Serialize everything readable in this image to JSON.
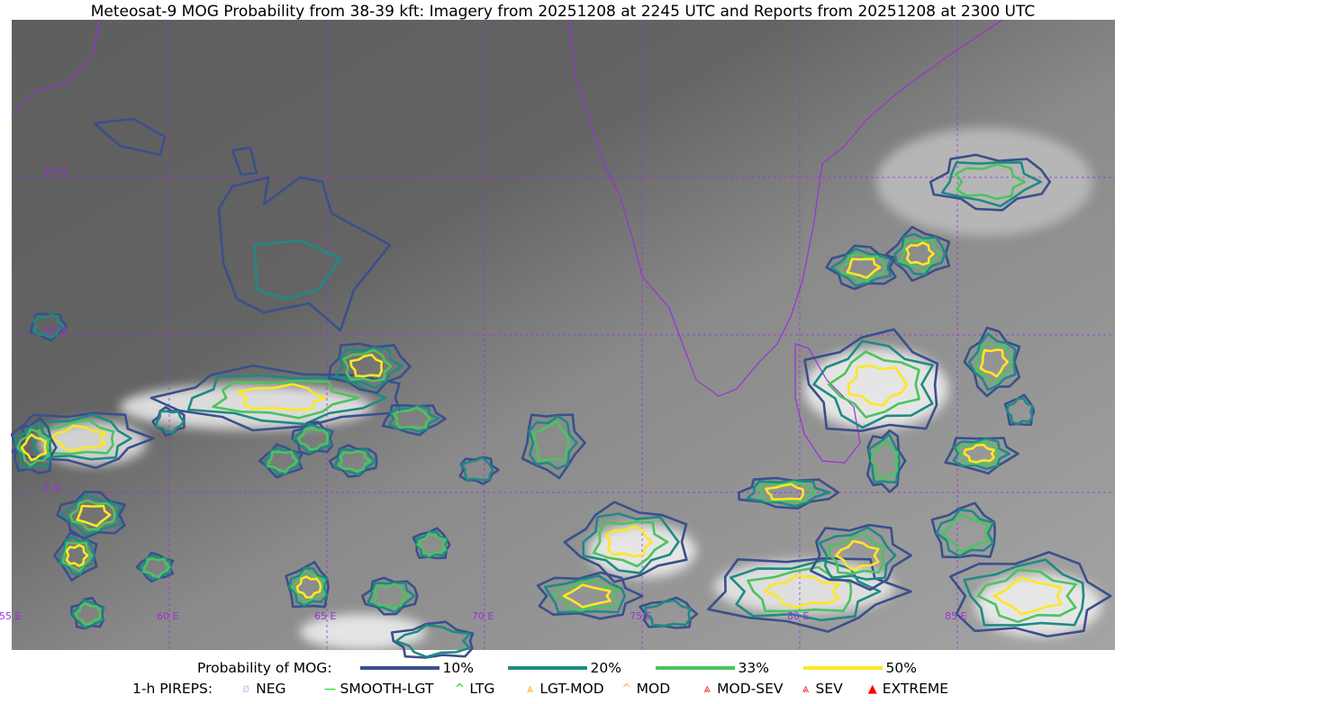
{
  "title": "Meteosat-9 MOG Probability from 38-39 kft: Imagery from 20251208 at 2245 UTC and Reports from 20251208 at 2300 UTC",
  "map": {
    "extent": {
      "lon": [
        55,
        90
      ],
      "lat": [
        0,
        20
      ]
    },
    "lat_labels": [
      "15 N",
      "10 N",
      "5 N"
    ],
    "lon_labels": [
      "55 E",
      "60 E",
      "65 E",
      "70 E",
      "75 E",
      "80 E",
      "85 E"
    ],
    "grid_color": "#9b30d9",
    "coastline_color": "#9b30d9"
  },
  "legend": {
    "probability_label": "Probability of MOG:",
    "levels": [
      {
        "label": "10%",
        "color": "#3b4f8c"
      },
      {
        "label": "20%",
        "color": "#1f8a84"
      },
      {
        "label": "33%",
        "color": "#4cc35f"
      },
      {
        "label": "50%",
        "color": "#fde724"
      }
    ],
    "pireps_label": "1-h PIREPS:",
    "pireps": [
      {
        "label": "NEG",
        "icon": "neg-icon",
        "color": "#c8c8f0"
      },
      {
        "label": "SMOOTH-LGT",
        "icon": "line-icon",
        "color": "#00e000"
      },
      {
        "label": "LTG",
        "icon": "caret-icon",
        "color": "#00e000"
      },
      {
        "label": "LGT-MOD",
        "icon": "caret-bar-icon",
        "color": "#ffb020"
      },
      {
        "label": "MOD",
        "icon": "caret-icon",
        "color": "#ffb020"
      },
      {
        "label": "MOD-SEV",
        "icon": "double-caret-icon",
        "color": "#ff2020"
      },
      {
        "label": "SEV",
        "icon": "double-caret-icon",
        "color": "#ff2020"
      },
      {
        "label": "EXTREME",
        "icon": "filled-triangle-icon",
        "color": "#ff0000"
      }
    ]
  }
}
